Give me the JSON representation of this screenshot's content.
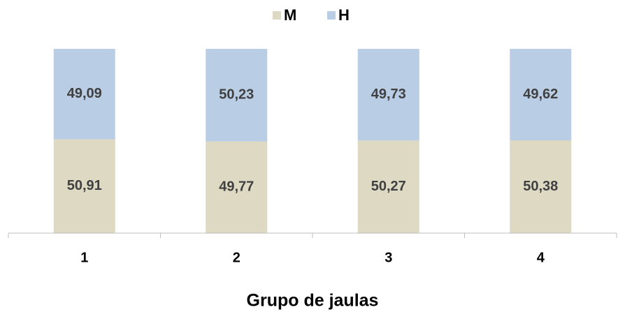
{
  "chart_data": {
    "type": "stacked_bar",
    "x_label": "Grupo de jaulas",
    "categories": [
      "1",
      "2",
      "3",
      "4"
    ],
    "series": [
      {
        "name": "M",
        "color": "#ddd9c3",
        "values": [
          50.91,
          49.77,
          50.27,
          50.38
        ],
        "value_labels": [
          "50,91",
          "49,77",
          "50,27",
          "50,38"
        ]
      },
      {
        "name": "H",
        "color": "#b9cde5",
        "values": [
          49.09,
          50.23,
          49.73,
          49.62
        ],
        "value_labels": [
          "49,09",
          "50,23",
          "49,73",
          "49,62"
        ]
      }
    ],
    "ylim": [
      0,
      100
    ],
    "legend": "top"
  }
}
